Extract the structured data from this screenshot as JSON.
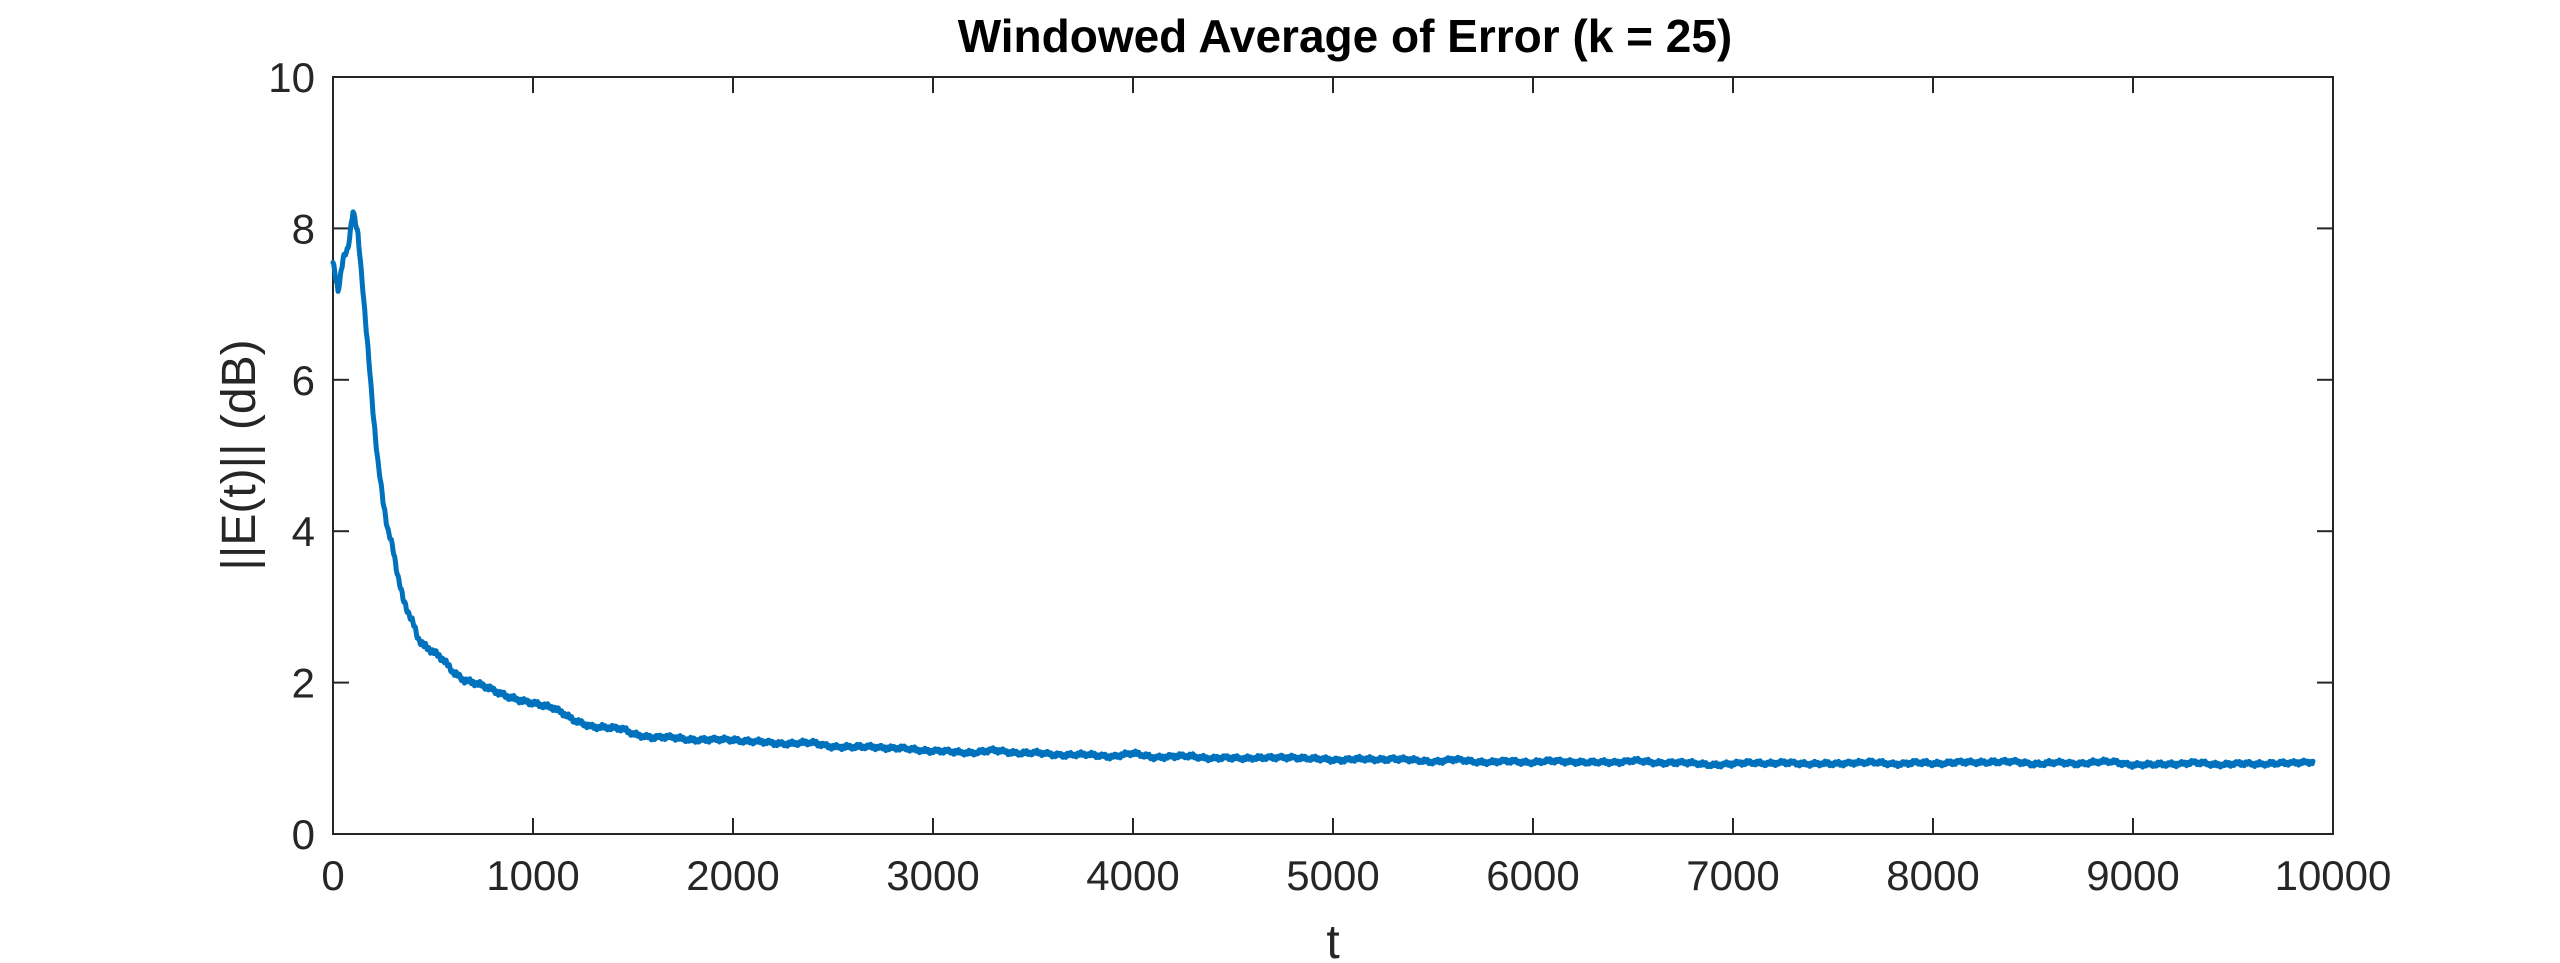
{
  "chart_data": {
    "type": "line",
    "title": "Windowed Average of Error (k = 25)",
    "xlabel": "t",
    "ylabel": "||E(t)|| (dB)",
    "xlim": [
      0,
      10000
    ],
    "ylim": [
      0,
      10
    ],
    "xticks": [
      0,
      1000,
      2000,
      3000,
      4000,
      5000,
      6000,
      7000,
      8000,
      9000,
      10000
    ],
    "yticks": [
      0,
      2,
      4,
      6,
      8,
      10
    ],
    "grid": false,
    "series": [
      {
        "color": "#0072BD",
        "x": [
          0,
          25,
          50,
          75,
          100,
          125,
          150,
          175,
          200,
          225,
          250,
          275,
          300,
          325,
          350,
          375,
          400,
          425,
          450,
          475,
          500,
          550,
          600,
          650,
          700,
          750,
          800,
          850,
          900,
          950,
          1000,
          1050,
          1100,
          1150,
          1200,
          1250,
          1300,
          1350,
          1400,
          1450,
          1500,
          1600,
          1700,
          1800,
          1900,
          2000,
          2100,
          2200,
          2300,
          2400,
          2500,
          2600,
          2700,
          2800,
          2900,
          3000,
          3100,
          3200,
          3300,
          3400,
          3500,
          3600,
          3700,
          3800,
          3900,
          4000,
          4100,
          4200,
          4300,
          4400,
          4500,
          4600,
          4700,
          4800,
          4900,
          5000,
          5100,
          5200,
          5300,
          5400,
          5500,
          5600,
          5700,
          5800,
          5900,
          6000,
          6100,
          6200,
          6300,
          6400,
          6500,
          6600,
          6700,
          6800,
          6900,
          7000,
          7100,
          7200,
          7300,
          7400,
          7500,
          7600,
          7700,
          7800,
          7900,
          8000,
          8100,
          8200,
          8300,
          8400,
          8500,
          8600,
          8700,
          8800,
          8900,
          9000,
          9100,
          9200,
          9300,
          9400,
          9500,
          9600,
          9700,
          9800,
          9900
        ],
        "y": [
          7.55,
          7.15,
          7.6,
          7.7,
          8.25,
          7.9,
          7.2,
          6.4,
          5.6,
          4.9,
          4.4,
          4.0,
          3.75,
          3.4,
          3.1,
          2.95,
          2.8,
          2.6,
          2.5,
          2.45,
          2.4,
          2.3,
          2.15,
          2.05,
          2.0,
          1.95,
          1.9,
          1.85,
          1.8,
          1.75,
          1.72,
          1.7,
          1.68,
          1.6,
          1.5,
          1.45,
          1.42,
          1.42,
          1.4,
          1.38,
          1.32,
          1.28,
          1.27,
          1.25,
          1.24,
          1.25,
          1.22,
          1.2,
          1.2,
          1.2,
          1.16,
          1.14,
          1.16,
          1.13,
          1.12,
          1.1,
          1.08,
          1.08,
          1.1,
          1.08,
          1.07,
          1.05,
          1.05,
          1.04,
          1.03,
          1.06,
          1.02,
          1.02,
          1.03,
          1.0,
          1.0,
          1.01,
          1.0,
          1.02,
          0.99,
          0.98,
          0.99,
          0.98,
          1.0,
          0.97,
          0.96,
          0.98,
          0.96,
          0.95,
          0.96,
          0.95,
          0.96,
          0.96,
          0.94,
          0.95,
          0.97,
          0.94,
          0.95,
          0.93,
          0.92,
          0.92,
          0.95,
          0.93,
          0.94,
          0.93,
          0.92,
          0.95,
          0.94,
          0.93,
          0.94,
          0.93,
          0.95,
          0.94,
          0.96,
          0.95,
          0.93,
          0.94,
          0.93,
          0.95,
          0.95,
          0.92,
          0.91,
          0.93,
          0.94,
          0.92,
          0.93,
          0.92,
          0.94,
          0.93,
          0.96
        ]
      }
    ]
  }
}
